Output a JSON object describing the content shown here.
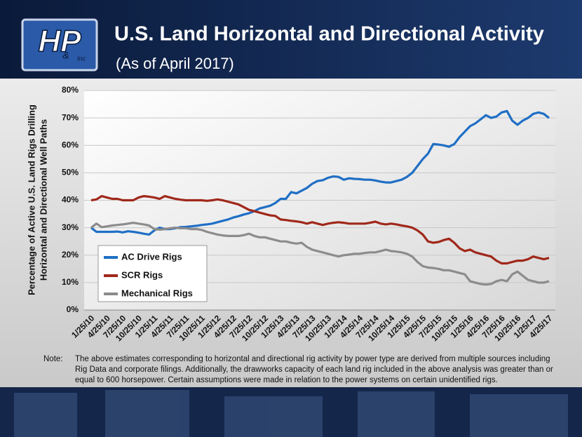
{
  "logo": {
    "letters": "HP",
    "amp": "&",
    "suffix": "Inc"
  },
  "chart_data": {
    "type": "line",
    "title": "U.S. Land Horizontal and Directional Activity",
    "subtitle": "(As of April 2017)",
    "ylabel": [
      "Percentage of Active U.S. Land Rigs Drilling",
      "Horizontal and Directional Well Paths"
    ],
    "categories": [
      "1/25/10",
      null,
      null,
      "4/25/10",
      null,
      null,
      "7/25/10",
      null,
      null,
      "10/25/10",
      null,
      null,
      "1/25/11",
      null,
      null,
      "4/25/11",
      null,
      null,
      "7/25/11",
      null,
      null,
      "10/25/11",
      null,
      null,
      "1/25/12",
      null,
      null,
      "4/25/12",
      null,
      null,
      "7/25/12",
      null,
      null,
      "10/25/12",
      null,
      null,
      "1/25/13",
      null,
      null,
      "4/25/13",
      null,
      null,
      "7/25/13",
      null,
      null,
      "10/25/13",
      null,
      null,
      "1/25/14",
      null,
      null,
      "4/25/14",
      null,
      null,
      "7/25/14",
      null,
      null,
      "10/25/14",
      null,
      null,
      "1/25/15",
      null,
      null,
      "4/25/15",
      null,
      null,
      "7/25/15",
      null,
      null,
      "10/25/15",
      null,
      null,
      "1/25/16",
      null,
      null,
      "4/25/16",
      null,
      null,
      "7/25/16",
      null,
      null,
      "10/25/16",
      null,
      null,
      "1/25/17",
      null,
      null,
      "4/25/17"
    ],
    "series": [
      {
        "name": "AC Drive Rigs",
        "color": "#1f6fc5",
        "values": [
          30,
          28.5,
          28.5,
          28.5,
          28.5,
          28.6,
          28.3,
          28.7,
          28.5,
          28.2,
          27.8,
          27.5,
          29,
          30,
          29.5,
          29.5,
          29.8,
          30.2,
          30.3,
          30.5,
          30.7,
          31,
          31.2,
          31.5,
          32,
          32.5,
          33,
          33.7,
          34.2,
          34.8,
          35.3,
          36,
          37,
          37.5,
          38,
          39,
          40.5,
          40.5,
          43,
          42.5,
          43.5,
          44.5,
          46,
          47,
          47.3,
          48.2,
          48.7,
          48.5,
          47.5,
          48,
          47.8,
          47.7,
          47.5,
          47.5,
          47.2,
          46.8,
          46.5,
          46.5,
          47,
          47.5,
          48.5,
          50,
          52.5,
          55,
          57,
          60.5,
          60.3,
          60,
          59.5,
          60.5,
          63,
          65,
          67,
          68,
          69.5,
          71,
          70,
          70.5,
          72,
          72.5,
          69,
          67.5,
          69,
          70,
          71.5,
          72,
          71.5,
          70
        ]
      },
      {
        "name": "SCR Rigs",
        "color": "#a0281a",
        "values": [
          40,
          40.3,
          41.5,
          41,
          40.5,
          40.5,
          40,
          40,
          40,
          41,
          41.5,
          41.3,
          41,
          40.5,
          41.5,
          41,
          40.5,
          40.2,
          40,
          40,
          40,
          40,
          39.8,
          40,
          40.3,
          40,
          39.5,
          39,
          38.5,
          37.5,
          36.5,
          36,
          35.5,
          35,
          34.5,
          34.3,
          33,
          32.8,
          32.5,
          32.3,
          32,
          31.5,
          32,
          31.5,
          31,
          31.5,
          31.8,
          32,
          31.8,
          31.5,
          31.5,
          31.5,
          31.5,
          31.8,
          32.2,
          31.5,
          31.2,
          31.5,
          31.2,
          30.8,
          30.5,
          30,
          29,
          27.5,
          25,
          24.5,
          24.8,
          25.5,
          26,
          24.5,
          22.5,
          21.5,
          22,
          21,
          20.5,
          20,
          19.5,
          18,
          17,
          17,
          17.5,
          18,
          18,
          18.5,
          19.5,
          19,
          18.5,
          19
        ]
      },
      {
        "name": "Mechanical Rigs",
        "color": "#8c8c8c",
        "values": [
          30,
          31.5,
          30.2,
          30.5,
          30.8,
          31,
          31.2,
          31.5,
          31.8,
          31.5,
          31.2,
          30.8,
          29.5,
          29.3,
          29.5,
          29.8,
          30,
          29.8,
          29.8,
          29.5,
          29.5,
          29.2,
          28.5,
          28,
          27.5,
          27.2,
          27,
          27,
          27,
          27.3,
          27.8,
          27,
          26.5,
          26.5,
          26,
          25.5,
          25,
          25,
          24.5,
          24.2,
          24.5,
          23,
          22,
          21.5,
          21,
          20.5,
          20,
          19.5,
          20,
          20.2,
          20.5,
          20.5,
          20.8,
          21,
          21,
          21.5,
          22,
          21.5,
          21.3,
          21,
          20.5,
          19.5,
          17.5,
          16,
          15.5,
          15.3,
          15,
          14.5,
          14.5,
          14,
          13.5,
          13,
          10.5,
          10,
          9.5,
          9.3,
          9.5,
          10.5,
          11,
          10.5,
          13,
          14,
          12.5,
          11,
          10.5,
          10,
          10,
          10.5
        ]
      }
    ],
    "ylim": [
      0,
      80
    ],
    "yticks": [
      {
        "value": 0,
        "label": "0%"
      },
      {
        "value": 10,
        "label": "10%"
      },
      {
        "value": 20,
        "label": "20%"
      },
      {
        "value": 30,
        "label": "30%"
      },
      {
        "value": 40,
        "label": "40%"
      },
      {
        "value": 50,
        "label": "50%"
      },
      {
        "value": 60,
        "label": "60%"
      },
      {
        "value": 70,
        "label": "70%"
      },
      {
        "value": 80,
        "label": "80%"
      }
    ],
    "grid": true,
    "legend": "lower-left",
    "note_label": "Note:",
    "note": [
      "The above estimates corresponding to horizontal and directional rig activity by power type are derived from multiple sources including",
      "Rig Data and corporate filings.  Additionally, the drawworks capacity of each land rig included in the above analysis was greater than or",
      "equal to 600 horsepower.  Certain assumptions were made in relation to the power systems on certain unidentified rigs."
    ]
  }
}
